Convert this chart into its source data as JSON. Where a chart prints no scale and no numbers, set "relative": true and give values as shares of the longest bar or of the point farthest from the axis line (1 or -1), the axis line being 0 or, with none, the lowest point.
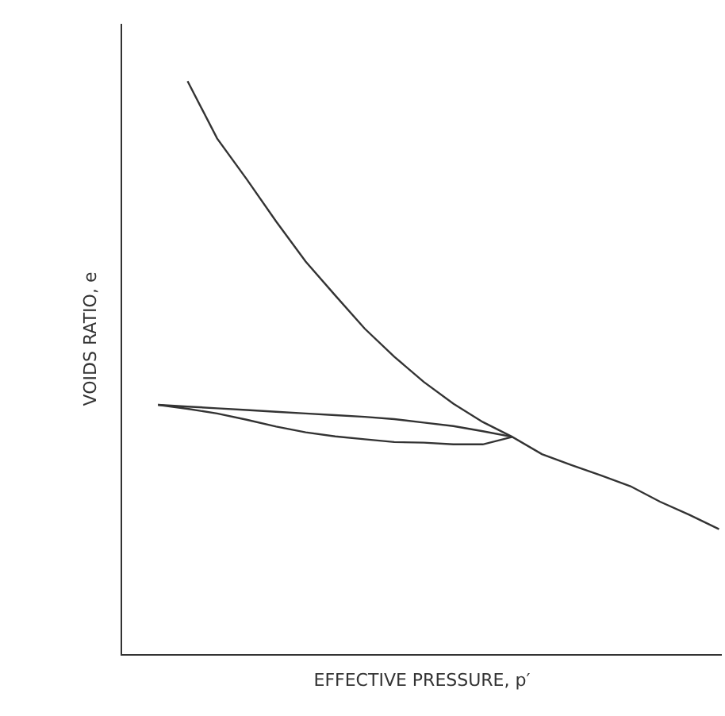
{
  "chart_data": {
    "type": "line",
    "relative": true,
    "xlabel": "EFFECTIVE PRESSURE, p′",
    "ylabel": "VOIDS RATIO, e",
    "tick_labels": false,
    "marker": "none",
    "line_style": "solid",
    "categories": [
      null,
      null,
      null,
      null,
      null,
      null,
      null,
      null,
      null,
      null,
      null,
      null,
      null,
      null,
      null,
      null,
      null,
      null,
      null,
      null
    ],
    "series": [
      {
        "color": "#333333",
        "values": [
          null,
          1.0,
          0.9,
          0.829,
          0.755,
          0.685,
          0.626,
          0.568,
          0.519,
          0.475,
          0.437,
          0.405,
          0.379,
          null,
          null,
          null,
          null,
          null,
          null,
          null
        ]
      },
      {
        "color": "#333333",
        "values": [
          0.435,
          0.428,
          0.42,
          0.409,
          0.397,
          0.387,
          0.38,
          0.375,
          0.37,
          0.369,
          0.366,
          0.366,
          0.379,
          null,
          null,
          null,
          null,
          null,
          null,
          null
        ]
      },
      {
        "color": "#333333",
        "values": [
          0.435,
          0.432,
          0.429,
          0.426,
          0.423,
          0.42,
          0.417,
          0.414,
          0.41,
          0.404,
          0.398,
          0.389,
          0.379,
          0.349,
          0.33,
          0.312,
          0.293,
          0.266,
          0.243,
          0.218
        ]
      }
    ]
  }
}
